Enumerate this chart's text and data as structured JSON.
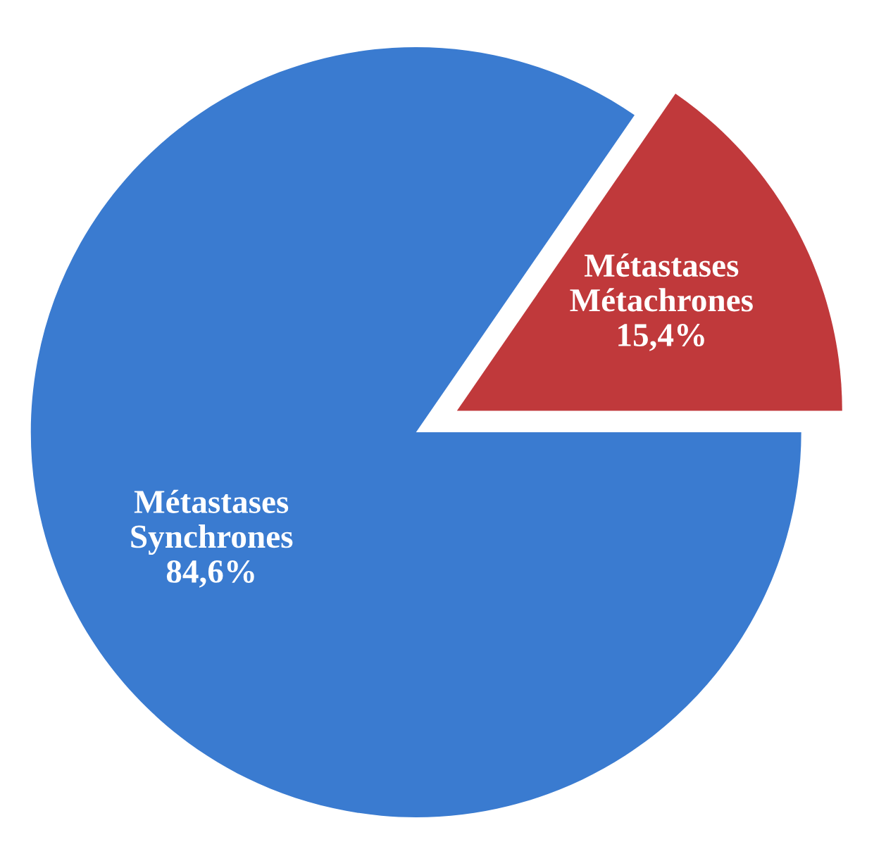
{
  "chart_data": {
    "type": "pie",
    "categories": [
      "Métastases\nMétachrones",
      "Métastases\nSynchrones"
    ],
    "values": [
      15.4,
      84.6
    ],
    "value_labels": [
      "15,4%",
      "84,6%"
    ],
    "colors": [
      "#c0393b",
      "#3a7bd0"
    ],
    "legend": false
  }
}
